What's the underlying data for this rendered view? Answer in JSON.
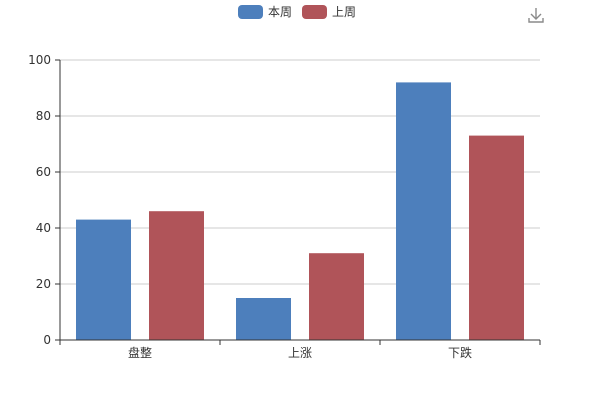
{
  "toolbar": {
    "download_icon": "download-icon"
  },
  "chart_data": {
    "type": "bar",
    "categories": [
      "盘整",
      "上涨",
      "下跌"
    ],
    "series": [
      {
        "name": "本周",
        "values": [
          43,
          15,
          92
        ],
        "color": "#4d7fbc"
      },
      {
        "name": "上周",
        "values": [
          46,
          31,
          73
        ],
        "color": "#b05459"
      }
    ],
    "ylim": [
      0,
      100
    ],
    "yticks": [
      0,
      20,
      40,
      60,
      80,
      100
    ],
    "grid": true,
    "legend": "top-center"
  }
}
